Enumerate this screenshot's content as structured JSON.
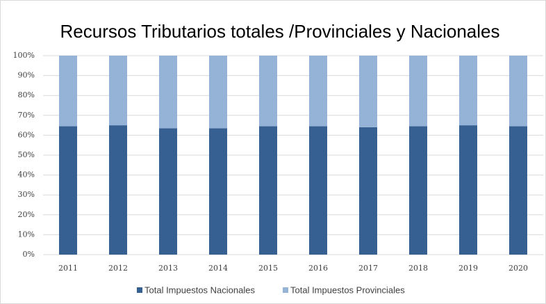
{
  "chart_data": {
    "type": "stacked_bar_100",
    "title": "Recursos Tributarios totales /Provinciales y Nacionales",
    "categories": [
      "2011",
      "2012",
      "2013",
      "2014",
      "2015",
      "2016",
      "2017",
      "2018",
      "2019",
      "2020"
    ],
    "series": [
      {
        "name": "Total Impuestos Nacionales",
        "color": "#376092",
        "values": [
          64.5,
          65,
          63.5,
          63.5,
          64.5,
          64.5,
          64,
          64.5,
          65,
          64.5
        ]
      },
      {
        "name": "Total Impuestos Provinciales",
        "color": "#95b3d7",
        "values": [
          35.5,
          35,
          36.5,
          36.5,
          35.5,
          35.5,
          36,
          35.5,
          35,
          35.5
        ]
      }
    ],
    "ylim": [
      0,
      100
    ],
    "yticks": [
      {
        "value": 0,
        "label": "0%"
      },
      {
        "value": 10,
        "label": "10%"
      },
      {
        "value": 20,
        "label": "20%"
      },
      {
        "value": 30,
        "label": "30%"
      },
      {
        "value": 40,
        "label": "40%"
      },
      {
        "value": 50,
        "label": "50%"
      },
      {
        "value": 60,
        "label": "60%"
      },
      {
        "value": 70,
        "label": "70%"
      },
      {
        "value": 80,
        "label": "80%"
      },
      {
        "value": 90,
        "label": "90%"
      },
      {
        "value": 100,
        "label": "100%"
      }
    ],
    "grid": true,
    "legend": "bottom"
  }
}
